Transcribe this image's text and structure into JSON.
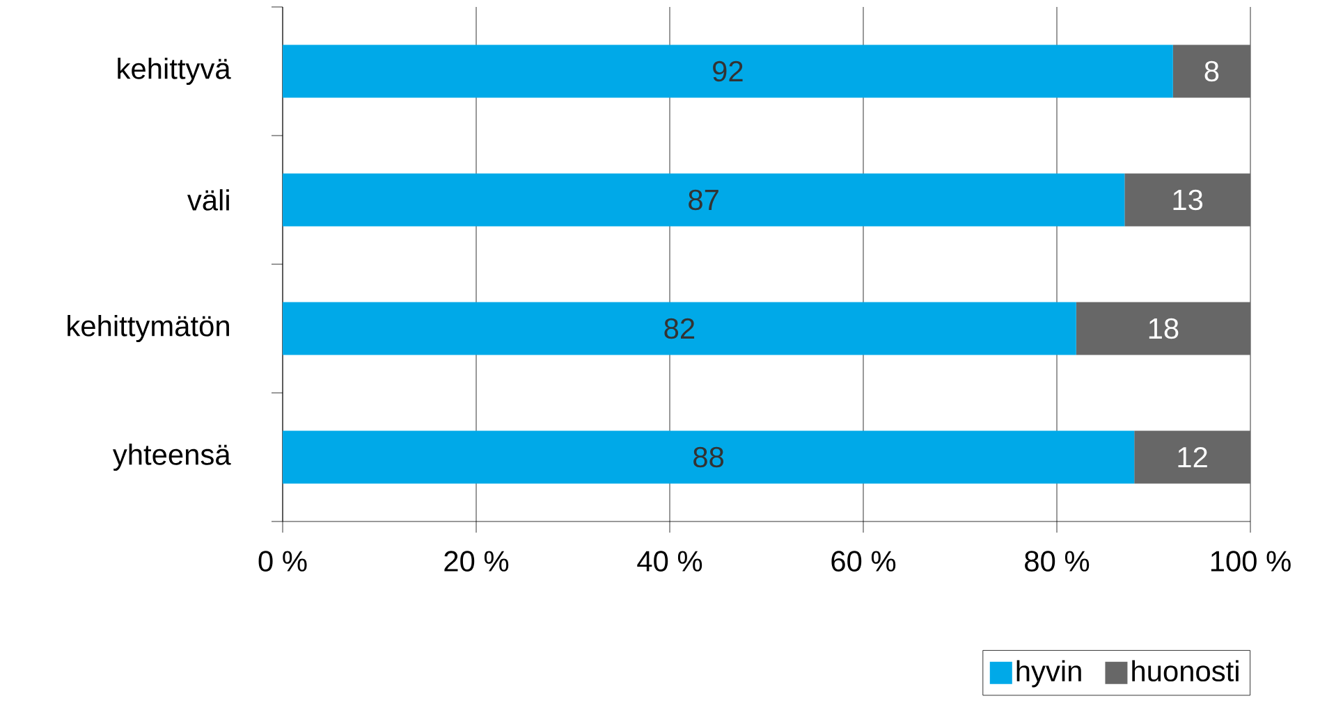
{
  "chart_data": {
    "type": "bar",
    "orientation": "horizontal",
    "stacked": true,
    "categories": [
      "kehittyvä",
      "väli",
      "kehittymätön",
      "yhteensä"
    ],
    "series": [
      {
        "name": "hyvin",
        "color": "#00a9e8",
        "values": [
          92,
          87,
          82,
          88
        ]
      },
      {
        "name": "huonosti",
        "color": "#676767",
        "values": [
          8,
          13,
          18,
          12
        ]
      }
    ],
    "xlim": [
      0,
      100
    ],
    "xticks": [
      {
        "value": 0,
        "label": "0 %"
      },
      {
        "value": 20,
        "label": "20 %"
      },
      {
        "value": 40,
        "label": "40 %"
      },
      {
        "value": 60,
        "label": "60 %"
      },
      {
        "value": 80,
        "label": "80 %"
      },
      {
        "value": 100,
        "label": "100 %"
      }
    ],
    "grid": "x",
    "legend": "bottom right",
    "data_labels": true
  }
}
